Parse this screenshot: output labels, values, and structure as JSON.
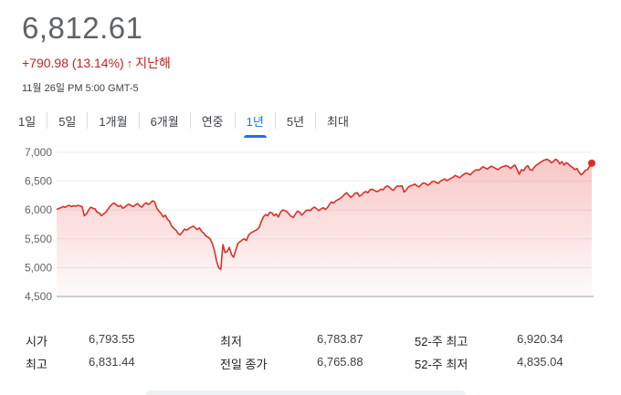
{
  "quote": {
    "price": "6,812.61",
    "change": "+790.98 (13.14%)",
    "period": "지난해",
    "timestamp": "11월 26일 PM 5:00 GMT-5"
  },
  "colors": {
    "negative_red": "#c5221f",
    "line_red": "#d93025",
    "active_blue": "#1a73e8"
  },
  "tabs": [
    {
      "label": "1일",
      "active": false
    },
    {
      "label": "5일",
      "active": false
    },
    {
      "label": "1개월",
      "active": false
    },
    {
      "label": "6개월",
      "active": false
    },
    {
      "label": "연중",
      "active": false
    },
    {
      "label": "1년",
      "active": true
    },
    {
      "label": "5년",
      "active": false
    },
    {
      "label": "최대",
      "active": false
    }
  ],
  "chart_data": {
    "type": "area",
    "y_tick_labels": [
      "7,000",
      "6,500",
      "6,000",
      "5,500",
      "5,000",
      "4,500"
    ],
    "ylim": [
      4500,
      7000
    ],
    "grid": true,
    "x": [
      0,
      1,
      2,
      3,
      4,
      5,
      6,
      7,
      8,
      9,
      10,
      11,
      12,
      13,
      14,
      15,
      16,
      17,
      18,
      19,
      20,
      21,
      22,
      23,
      24,
      25,
      26,
      27,
      28,
      29,
      30,
      31,
      32,
      33,
      34,
      35,
      36,
      37,
      38,
      39,
      40,
      41,
      42,
      43,
      44,
      45,
      46,
      47,
      48,
      49,
      50,
      51,
      52,
      53,
      54,
      55,
      56,
      57,
      58,
      59,
      60,
      61,
      62,
      63,
      64,
      65,
      66,
      67,
      68,
      69,
      70,
      71,
      72,
      73,
      74,
      75,
      76,
      77,
      78,
      79,
      80,
      81,
      82,
      83,
      84,
      85,
      86,
      87,
      88,
      89,
      90,
      91,
      92,
      93,
      94,
      95,
      96,
      97,
      98,
      99,
      100,
      101,
      102,
      103,
      104,
      105,
      106,
      107,
      108,
      109,
      110,
      111,
      112,
      113,
      114,
      115,
      116,
      117,
      118,
      119,
      120,
      121,
      122,
      123,
      124,
      125,
      126,
      127,
      128,
      129,
      130,
      131,
      132,
      133,
      134,
      135,
      136,
      137,
      138,
      139,
      140,
      141,
      142,
      143,
      144,
      145,
      146,
      147,
      148,
      149,
      150,
      151,
      152,
      153,
      154,
      155,
      156,
      157,
      158,
      159,
      160,
      161,
      162,
      163,
      164,
      165,
      166,
      167,
      168,
      169,
      170,
      171,
      172,
      173,
      174,
      175,
      176,
      177,
      178,
      179,
      180,
      181,
      182,
      183,
      184,
      185,
      186,
      187,
      188,
      189,
      190,
      191,
      192,
      193,
      194,
      195,
      196,
      197,
      198,
      199,
      200,
      201,
      202,
      203,
      204,
      205,
      206,
      207,
      208,
      209,
      210,
      211,
      212,
      213,
      214,
      215,
      216,
      217,
      218,
      219,
      220,
      221,
      222,
      223,
      224,
      225,
      226,
      227,
      228,
      229,
      230,
      231,
      232,
      233,
      234,
      235,
      236,
      237,
      238,
      239,
      240,
      241,
      242,
      243,
      244,
      245,
      246,
      247,
      248,
      249,
      250,
      251
    ],
    "values": [
      6010,
      6025,
      6040,
      6060,
      6045,
      6070,
      6080,
      6060,
      6075,
      6065,
      6080,
      6070,
      6055,
      5900,
      5930,
      6000,
      6050,
      6030,
      6020,
      5960,
      5950,
      5900,
      5930,
      5960,
      6010,
      6060,
      6100,
      6120,
      6090,
      6060,
      6080,
      6030,
      6050,
      6085,
      6100,
      6075,
      6060,
      6090,
      6110,
      6070,
      6050,
      6100,
      6125,
      6095,
      6120,
      6160,
      6140,
      6030,
      5980,
      5940,
      5880,
      5910,
      5840,
      5800,
      5720,
      5680,
      5650,
      5590,
      5570,
      5620,
      5670,
      5650,
      5680,
      5700,
      5720,
      5690,
      5660,
      5690,
      5630,
      5600,
      5550,
      5530,
      5500,
      5420,
      5300,
      5120,
      5000,
      4970,
      5400,
      5260,
      5280,
      5350,
      5230,
      5180,
      5300,
      5420,
      5450,
      5480,
      5500,
      5470,
      5560,
      5600,
      5620,
      5640,
      5660,
      5700,
      5800,
      5880,
      5920,
      5900,
      5960,
      5950,
      5900,
      5930,
      5880,
      5960,
      6000,
      5990,
      5970,
      5930,
      5890,
      5870,
      5930,
      5980,
      5960,
      5910,
      5950,
      5990,
      6000,
      5990,
      6030,
      6050,
      6020,
      5990,
      6020,
      6040,
      6010,
      6040,
      6100,
      6140,
      6120,
      6160,
      6180,
      6200,
      6230,
      6270,
      6300,
      6260,
      6220,
      6250,
      6290,
      6300,
      6240,
      6260,
      6300,
      6320,
      6300,
      6350,
      6360,
      6340,
      6320,
      6330,
      6360,
      6350,
      6390,
      6420,
      6400,
      6360,
      6340,
      6390,
      6420,
      6410,
      6420,
      6310,
      6350,
      6400,
      6420,
      6430,
      6450,
      6420,
      6400,
      6440,
      6470,
      6460,
      6430,
      6450,
      6490,
      6500,
      6480,
      6460,
      6500,
      6520,
      6540,
      6510,
      6530,
      6550,
      6570,
      6600,
      6580,
      6560,
      6590,
      6620,
      6640,
      6630,
      6610,
      6650,
      6680,
      6700,
      6690,
      6720,
      6750,
      6730,
      6710,
      6740,
      6760,
      6740,
      6720,
      6700,
      6730,
      6750,
      6760,
      6770,
      6750,
      6720,
      6760,
      6780,
      6700,
      6620,
      6700,
      6680,
      6740,
      6770,
      6700,
      6690,
      6740,
      6780,
      6800,
      6830,
      6850,
      6870,
      6880,
      6860,
      6820,
      6840,
      6880,
      6860,
      6800,
      6840,
      6780,
      6820,
      6800,
      6760,
      6740,
      6700,
      6720,
      6660,
      6610,
      6640,
      6690,
      6700,
      6760,
      6812
    ]
  },
  "stats": {
    "open_label": "시가",
    "open_value": "6,793.55",
    "high_label": "최고",
    "high_value": "6,831.44",
    "low_label": "최저",
    "low_value": "6,783.87",
    "prev_close_label": "전일 종가",
    "prev_close_value": "6,765.88",
    "wk52_high_label": "52-주 최고",
    "wk52_high_value": "6,920.34",
    "wk52_low_label": "52-주 최저",
    "wk52_low_value": "4,835.04"
  }
}
